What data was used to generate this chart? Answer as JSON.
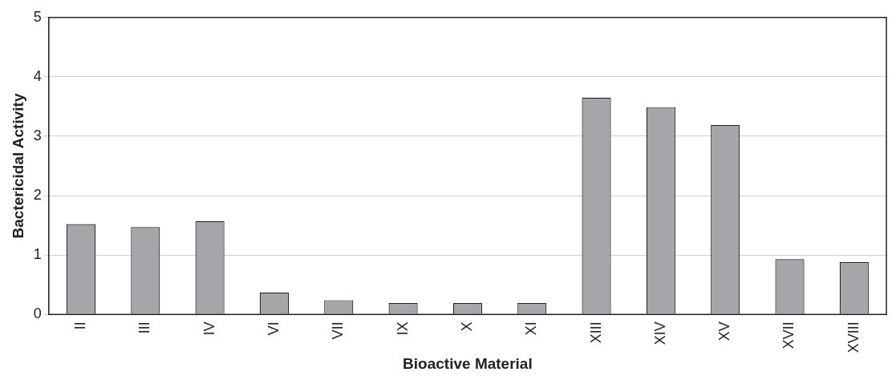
{
  "chart_data": {
    "type": "bar",
    "xlabel": "Bioactive Material",
    "ylabel": "Bactericidal Activity",
    "categories": [
      "II",
      "III",
      "IV",
      "VI",
      "VII",
      "IX",
      "X",
      "XI",
      "XIII",
      "XIV",
      "XV",
      "XVII",
      "XVIII"
    ],
    "values": [
      1.52,
      1.47,
      1.57,
      0.37,
      0.24,
      0.19,
      0.19,
      0.19,
      3.65,
      3.49,
      3.19,
      0.93,
      0.88
    ],
    "color": "#a6a6aa",
    "ylim": [
      0,
      5
    ],
    "yticks": [
      0,
      1,
      2,
      3,
      4,
      5
    ],
    "grid": "y",
    "legend": false
  }
}
